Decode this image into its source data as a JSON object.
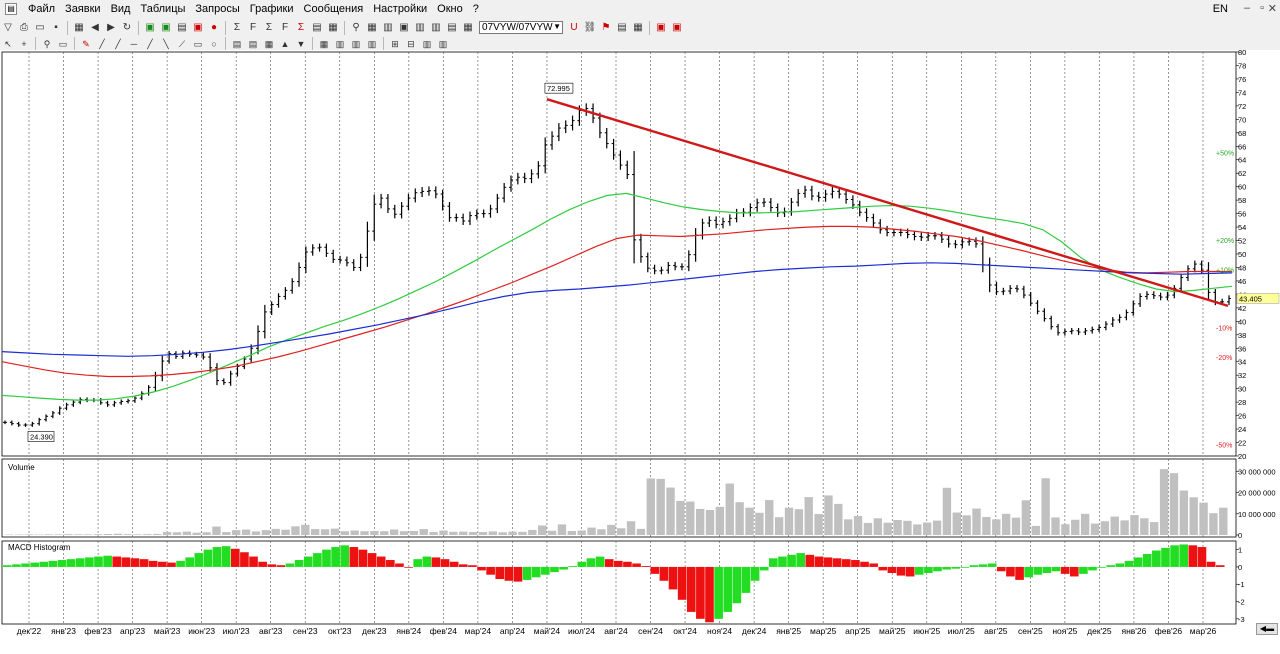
{
  "menu": {
    "items": [
      "Файл",
      "Заявки",
      "Вид",
      "Таблицы",
      "Запросы",
      "Графики",
      "Сообщения",
      "Настройки",
      "Окно",
      "?"
    ],
    "language": "EN"
  },
  "toolbar": {
    "ticker": "07VYW/07VYW"
  },
  "colors": {
    "bar": "#000000",
    "ma_green": "#2ecc40",
    "ma_red": "#e02020",
    "ma_blue": "#1a2dd6",
    "trendline": "#d01818",
    "volume": "#c0c0c0",
    "macd_pos_up": "#22dd22",
    "macd_pos_down": "#ee1111",
    "price_box": "#ffff99"
  },
  "chart_data": [
    {
      "type": "ohlc",
      "panel": "price",
      "ylim": [
        20,
        80
      ],
      "y_ticks": [
        20,
        22,
        24,
        26,
        28,
        30,
        32,
        34,
        36,
        38,
        40,
        42,
        44,
        46,
        48,
        50,
        52,
        54,
        56,
        58,
        60,
        62,
        64,
        66,
        68,
        70,
        72,
        74,
        76,
        78,
        80
      ],
      "x_labels": [
        "дек'22",
        "янв'23",
        "фев'23",
        "апр'23",
        "май'23",
        "июн'23",
        "июл'23",
        "авг'23",
        "сен'23",
        "окт'23",
        "дек'23",
        "янв'24",
        "фев'24",
        "мар'24",
        "апр'24",
        "май'24",
        "июл'24",
        "авг'24",
        "сен'24",
        "окт'24",
        "ноя'24",
        "дек'24",
        "янв'25",
        "мар'25",
        "апр'25",
        "май'25",
        "июн'25",
        "июл'25",
        "авг'25",
        "сен'25",
        "ноя'25",
        "дек'25",
        "янв'26",
        "фев'26",
        "мар'26"
      ],
      "close": [
        25.0,
        24.8,
        24.6,
        24.6,
        24.8,
        25.4,
        25.9,
        26.4,
        27.1,
        27.6,
        28.0,
        28.4,
        28.3,
        28.3,
        27.9,
        27.6,
        27.9,
        28.1,
        28.2,
        28.6,
        29.3,
        30.2,
        31.9,
        34.1,
        35.2,
        34.8,
        35.3,
        35.1,
        35.0,
        34.7,
        33.1,
        31.2,
        30.9,
        32.2,
        33.3,
        34.4,
        36.0,
        38.5,
        41.4,
        42.5,
        43.7,
        44.6,
        45.9,
        48.0,
        50.3,
        50.9,
        51.0,
        50.1,
        49.2,
        49.1,
        48.7,
        48.0,
        49.5,
        53.4,
        57.4,
        58.3,
        56.7,
        55.9,
        57.1,
        58.3,
        59.1,
        59.3,
        59.4,
        58.9,
        57.1,
        55.4,
        55.4,
        54.9,
        55.7,
        56.0,
        56.0,
        56.7,
        58.3,
        59.9,
        61.0,
        61.4,
        61.2,
        61.9,
        63.1,
        66.2,
        67.5,
        68.7,
        69.1,
        69.8,
        71.3,
        71.6,
        70.2,
        68.0,
        66.4,
        64.7,
        63.2,
        61.8,
        52.1,
        49.6,
        47.9,
        47.5,
        47.6,
        48.3,
        48.1,
        48.1,
        49.9,
        52.8,
        54.6,
        55.0,
        54.4,
        54.8,
        55.3,
        56.1,
        56.2,
        56.9,
        57.6,
        57.7,
        56.9,
        56.1,
        56.3,
        57.7,
        59.0,
        59.5,
        58.6,
        58.4,
        58.9,
        59.3,
        58.9,
        58.1,
        57.3,
        56.2,
        55.4,
        54.6,
        53.6,
        53.2,
        53.2,
        53.2,
        52.9,
        52.6,
        52.5,
        52.7,
        52.7,
        52.2,
        51.5,
        51.4,
        51.8,
        51.9,
        51.5,
        48.4,
        45.4,
        44.4,
        44.5,
        44.9,
        44.8,
        43.9,
        42.7,
        41.5,
        40.4,
        39.2,
        38.3,
        38.5,
        38.6,
        38.4,
        38.6,
        38.8,
        39.1,
        39.6,
        40.2,
        40.6,
        41.3,
        42.6,
        43.7,
        44.0,
        43.8,
        43.6,
        43.9,
        44.9,
        46.5,
        47.8,
        48.5,
        47.6,
        44.3,
        42.9,
        42.9,
        43.4
      ],
      "ma_green": [
        29.0,
        28.8,
        28.6,
        28.4,
        28.3,
        28.3,
        28.5,
        28.9,
        29.5,
        30.3,
        31.3,
        32.4,
        33.6,
        34.8,
        36.1,
        37.2,
        38.2,
        39.2,
        40.1,
        41.1,
        42.2,
        43.4,
        44.7,
        46.0,
        47.5,
        49.0,
        50.6,
        52.1,
        53.6,
        55.2,
        56.6,
        57.8,
        58.7,
        59.0,
        58.3,
        57.6,
        57.0,
        56.6,
        56.3,
        56.1,
        56.1,
        56.2,
        56.3,
        56.5,
        56.7,
        56.9,
        57.1,
        57.2,
        57.1,
        56.8,
        56.4,
        55.9,
        55.4,
        55.0,
        54.5,
        53.6,
        51.8,
        49.5,
        47.7,
        46.6,
        45.6,
        44.8,
        44.4,
        44.6,
        44.9,
        45.2
      ],
      "ma_red": [
        34.0,
        33.4,
        32.8,
        32.3,
        32.0,
        31.8,
        31.8,
        31.9,
        32.1,
        32.4,
        32.8,
        33.3,
        34.0,
        34.7,
        35.5,
        36.4,
        37.3,
        38.2,
        39.1,
        40.1,
        41.1,
        42.2,
        43.3,
        44.5,
        45.7,
        47.0,
        48.3,
        49.7,
        51.1,
        52.3,
        52.8,
        52.7,
        52.6,
        52.8,
        53.0,
        53.3,
        53.6,
        53.8,
        54.0,
        54.1,
        54.1,
        54.0,
        53.7,
        53.4,
        53.0,
        52.6,
        52.0,
        51.3,
        50.6,
        49.8,
        49.0,
        48.3,
        47.7,
        47.3,
        47.2,
        47.3,
        47.4,
        47.4,
        47.4
      ],
      "ma_blue": [
        35.5,
        35.3,
        35.1,
        35.0,
        34.9,
        34.8,
        34.9,
        35.1,
        35.4,
        35.8,
        36.3,
        36.9,
        37.5,
        38.1,
        38.8,
        39.5,
        40.3,
        41.1,
        42.0,
        42.9,
        43.7,
        44.3,
        44.6,
        44.8,
        45.1,
        45.4,
        45.8,
        46.2,
        46.6,
        47.0,
        47.4,
        47.7,
        47.9,
        48.1,
        48.2,
        48.4,
        48.6,
        48.7,
        48.6,
        48.4,
        48.2,
        48.0,
        47.8,
        47.6,
        47.4,
        47.2,
        47.1,
        47.0,
        47.1,
        47.2
      ],
      "trendline": {
        "from": {
          "x": "май'24",
          "y": 72.995
        },
        "to": {
          "x": "мар'26",
          "y": 42.3
        }
      },
      "annotations": [
        {
          "label": "72.995",
          "kind": "high"
        },
        {
          "label": "24.390",
          "kind": "low"
        },
        {
          "label": "43.405",
          "kind": "last_price"
        }
      ],
      "fib_levels": [
        {
          "label": "+50%",
          "color": "green",
          "y": 65.1
        },
        {
          "label": "+20%",
          "color": "green",
          "y": 52.1
        },
        {
          "label": "+10%",
          "color": "green",
          "y": 47.7
        },
        {
          "label": "-10%",
          "color": "red",
          "y": 39.1
        },
        {
          "label": "-20%",
          "color": "red",
          "y": 34.7
        },
        {
          "label": "-50%",
          "color": "red",
          "y": 21.7
        }
      ]
    },
    {
      "type": "bar",
      "panel": "volume",
      "title": "Volume",
      "ylim": [
        0,
        34000000
      ],
      "y_tick_labels": [
        "30 000 000",
        "20 000 000",
        "10 000 000",
        "0"
      ],
      "y_tick_values": [
        30000000,
        20000000,
        10000000,
        0
      ],
      "values": [
        200000,
        200000,
        300000,
        200000,
        300000,
        300000,
        400000,
        300000,
        300000,
        400000,
        500000,
        600000,
        400000,
        300000,
        400000,
        500000,
        1400000,
        1300000,
        1600000,
        1100000,
        1300000,
        4000000,
        1400000,
        2300000,
        2600000,
        1700000,
        2300000,
        2900000,
        2500000,
        4100000,
        4800000,
        2800000,
        2700000,
        3000000,
        1800000,
        2100000,
        1800000,
        1900000,
        1800000,
        2600000,
        1800000,
        1900000,
        2800000,
        1400000,
        2100000,
        1500000,
        1600000,
        1400000,
        1400000,
        1700000,
        1300000,
        1600000,
        1500000,
        2400000,
        4500000,
        2000000,
        5000000,
        1900000,
        2100000,
        3500000,
        2700000,
        4800000,
        3200000,
        6500000,
        2900000,
        26700000,
        26500000,
        22400000,
        16100000,
        15800000,
        12300000,
        11800000,
        13300000,
        24300000,
        15500000,
        12900000,
        10500000,
        16500000,
        8400000,
        12900000,
        12200000,
        17900000,
        9900000,
        18700000,
        14700000,
        7400000,
        9000000,
        5700000,
        7900000,
        5800000,
        7100000,
        6700000,
        5000000,
        5900000,
        6800000,
        22300000,
        10600000,
        9300000,
        12500000,
        8500000,
        7400000,
        10000000,
        8200000,
        16400000,
        4300000,
        26800000,
        8300000,
        5100000,
        7200000,
        10000000,
        5400000,
        6500000,
        8700000,
        6900000,
        9400000,
        7900000,
        6100000,
        31100000,
        29200000,
        21000000,
        17800000,
        15300000,
        10300000,
        12900000
      ]
    },
    {
      "type": "bar",
      "panel": "macd",
      "title": "MACD Histogram",
      "ylim": [
        -3.3,
        1.5
      ],
      "y_tick_labels": [
        "1",
        "0",
        "-1",
        "-2",
        "-3"
      ],
      "y_tick_values": [
        1,
        0,
        -1,
        -2,
        -3
      ],
      "values": [
        0.1,
        0.15,
        0.2,
        0.25,
        0.3,
        0.35,
        0.4,
        0.45,
        0.5,
        0.55,
        0.6,
        0.65,
        0.6,
        0.55,
        0.5,
        0.45,
        0.35,
        0.3,
        0.25,
        0.35,
        0.55,
        0.8,
        1.0,
        1.15,
        1.2,
        1.05,
        0.85,
        0.6,
        0.3,
        0.15,
        0.1,
        0.2,
        0.4,
        0.6,
        0.8,
        1.0,
        1.15,
        1.25,
        1.15,
        1.0,
        0.8,
        0.6,
        0.4,
        0.2,
        0.0,
        0.45,
        0.6,
        0.55,
        0.45,
        0.3,
        0.15,
        0.1,
        -0.2,
        -0.45,
        -0.7,
        -0.8,
        -0.85,
        -0.75,
        -0.6,
        -0.45,
        -0.3,
        -0.15,
        0.05,
        0.3,
        0.5,
        0.6,
        0.45,
        0.35,
        0.3,
        0.2,
        0.05,
        -0.4,
        -0.8,
        -1.3,
        -1.9,
        -2.6,
        -3.0,
        -3.2,
        -3.0,
        -2.6,
        -2.1,
        -1.5,
        -0.8,
        -0.2,
        0.5,
        0.6,
        0.7,
        0.8,
        0.7,
        0.6,
        0.55,
        0.5,
        0.45,
        0.4,
        0.3,
        0.2,
        -0.2,
        -0.35,
        -0.5,
        -0.55,
        -0.45,
        -0.35,
        -0.25,
        -0.15,
        -0.1,
        0.0,
        0.1,
        0.15,
        0.2,
        -0.25,
        -0.55,
        -0.75,
        -0.6,
        -0.45,
        -0.35,
        -0.25,
        -0.4,
        -0.55,
        -0.4,
        -0.2,
        0.0,
        0.1,
        0.2,
        0.35,
        0.55,
        0.75,
        0.95,
        1.1,
        1.25,
        1.3,
        1.25,
        1.15,
        0.3,
        0.1
      ]
    }
  ]
}
